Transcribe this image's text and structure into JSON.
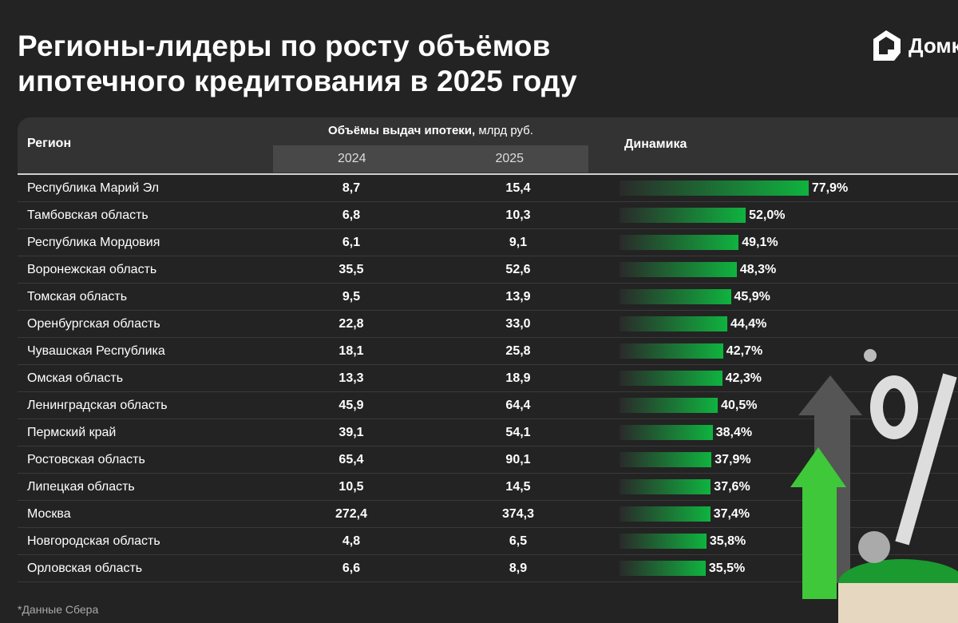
{
  "title": "Регионы-лидеры по росту объёмов ипотечного кредитования в 2025 году",
  "logo": "Домклик",
  "header": {
    "region": "Регион",
    "volume_bold": "Объёмы выдач ипотеки,",
    "volume_unit": " млрд руб.",
    "y1": "2024",
    "y2": "2025",
    "dynamics": "Динамика"
  },
  "rows": [
    {
      "region": "Республика Марий Эл",
      "v2024": "8,7",
      "v2025": "15,4",
      "growth": "77,9%",
      "g": 77.9
    },
    {
      "region": "Тамбовская область",
      "v2024": "6,8",
      "v2025": "10,3",
      "growth": "52,0%",
      "g": 52.0
    },
    {
      "region": "Республика Мордовия",
      "v2024": "6,1",
      "v2025": "9,1",
      "growth": "49,1%",
      "g": 49.1
    },
    {
      "region": "Воронежская область",
      "v2024": "35,5",
      "v2025": "52,6",
      "growth": "48,3%",
      "g": 48.3
    },
    {
      "region": "Томская область",
      "v2024": "9,5",
      "v2025": "13,9",
      "growth": "45,9%",
      "g": 45.9
    },
    {
      "region": "Оренбургская область",
      "v2024": "22,8",
      "v2025": "33,0",
      "growth": "44,4%",
      "g": 44.4
    },
    {
      "region": "Чувашская Республика",
      "v2024": "18,1",
      "v2025": "25,8",
      "growth": "42,7%",
      "g": 42.7
    },
    {
      "region": "Омская область",
      "v2024": "13,3",
      "v2025": "18,9",
      "growth": "42,3%",
      "g": 42.3
    },
    {
      "region": "Ленинградская область",
      "v2024": "45,9",
      "v2025": "64,4",
      "growth": "40,5%",
      "g": 40.5
    },
    {
      "region": "Пермский край",
      "v2024": "39,1",
      "v2025": "54,1",
      "growth": "38,4%",
      "g": 38.4
    },
    {
      "region": "Ростовская область",
      "v2024": "65,4",
      "v2025": "90,1",
      "growth": "37,9%",
      "g": 37.9
    },
    {
      "region": "Липецкая область",
      "v2024": "10,5",
      "v2025": "14,5",
      "growth": "37,6%",
      "g": 37.6
    },
    {
      "region": "Москва",
      "v2024": "272,4",
      "v2025": "374,3",
      "growth": "37,4%",
      "g": 37.4
    },
    {
      "region": "Новгородская область",
      "v2024": "4,8",
      "v2025": "6,5",
      "growth": "35,8%",
      "g": 35.8
    },
    {
      "region": "Орловская область",
      "v2024": "6,6",
      "v2025": "8,9",
      "growth": "35,5%",
      "g": 35.5
    }
  ],
  "footnote": "*Данные Сбера",
  "colors": {
    "bg": "#232323",
    "accent": "#0fb33f"
  }
}
